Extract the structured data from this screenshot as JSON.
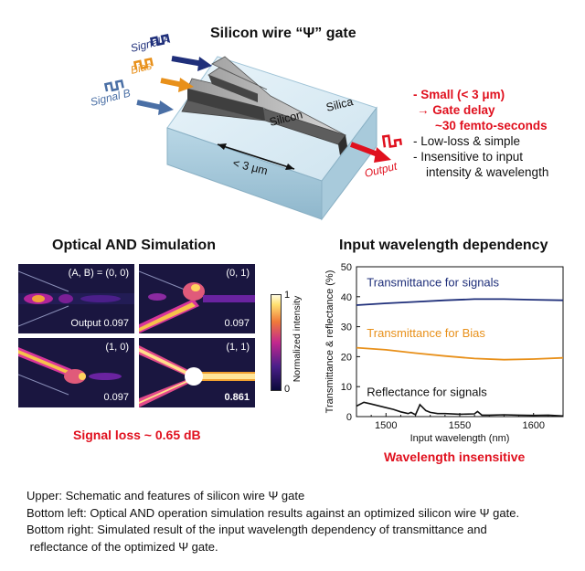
{
  "schematic": {
    "title": "Silicon wire “Ψ” gate",
    "signal_a": "Signal A",
    "bias": "Bias",
    "signal_b": "Signal B",
    "silicon": "Silicon",
    "silica": "Silica",
    "dimension": "< 3 μm",
    "output": "Output"
  },
  "features": {
    "red_items": [
      "- Small (< 3 μm)",
      "→ Gate delay",
      "~30 femto-seconds"
    ],
    "items": [
      "- Low-loss & simple",
      "- Insensitive to input",
      "intensity & wavelength"
    ]
  },
  "simulation": {
    "title": "Optical AND Simulation",
    "panels": [
      {
        "label": "(A, B) = (0, 0)",
        "value": "Output 0.097"
      },
      {
        "label": "(0, 1)",
        "value": "0.097"
      },
      {
        "label": "(1, 0)",
        "value": "0.097"
      },
      {
        "label": "(1, 1)",
        "value": "0.861"
      }
    ],
    "colorbar_max": "1",
    "colorbar_min": "0",
    "colorbar_label": "Normalized intensity",
    "loss": "Signal loss ~ 0.65 dB"
  },
  "chart_data": {
    "type": "line",
    "title": "Input wavelength dependency",
    "xlabel": "Input wavelength (nm)",
    "ylabel": "Transmittance & reflectance (%)",
    "xlim": [
      1480,
      1620
    ],
    "ylim": [
      0,
      50
    ],
    "xticks": [
      1500,
      1550,
      1600
    ],
    "yticks": [
      0,
      10,
      20,
      30,
      40,
      50
    ],
    "grid": false,
    "series": [
      {
        "name": "Transmittance for signals",
        "color": "#1f2f7a",
        "x": [
          1480,
          1500,
          1520,
          1540,
          1560,
          1580,
          1600,
          1620
        ],
        "y": [
          37.2,
          37.8,
          38.3,
          38.8,
          39.2,
          39.2,
          39.0,
          38.8
        ]
      },
      {
        "name": "Transmittance for Bias",
        "color": "#e8901a",
        "x": [
          1480,
          1500,
          1520,
          1540,
          1560,
          1580,
          1600,
          1620
        ],
        "y": [
          23.0,
          22.3,
          21.2,
          20.2,
          19.4,
          19.0,
          19.2,
          19.6
        ]
      },
      {
        "name": "Reflectance for signals",
        "color": "#111111",
        "x": [
          1480,
          1485,
          1490,
          1495,
          1500,
          1505,
          1510,
          1515,
          1517,
          1520,
          1523,
          1527,
          1530,
          1535,
          1540,
          1550,
          1560,
          1562,
          1565,
          1570,
          1580,
          1590,
          1600,
          1610,
          1620
        ],
        "y": [
          3.5,
          4.8,
          4.2,
          3.6,
          3.0,
          2.4,
          1.6,
          1.0,
          1.4,
          0.6,
          4.0,
          2.0,
          1.4,
          1.0,
          1.0,
          0.8,
          0.9,
          1.7,
          0.5,
          0.5,
          0.6,
          0.5,
          0.4,
          0.5,
          0.2
        ]
      }
    ],
    "footer": "Wavelength insensitive"
  },
  "captions": [
    "Upper: Schematic and features of silicon wire Ψ gate",
    "Bottom left: Optical AND operation simulation results against an optimized silicon wire Ψ gate.",
    "Bottom right: Simulated result of the input wavelength dependency of transmittance and",
    " reflectance of the optimized Ψ gate."
  ]
}
